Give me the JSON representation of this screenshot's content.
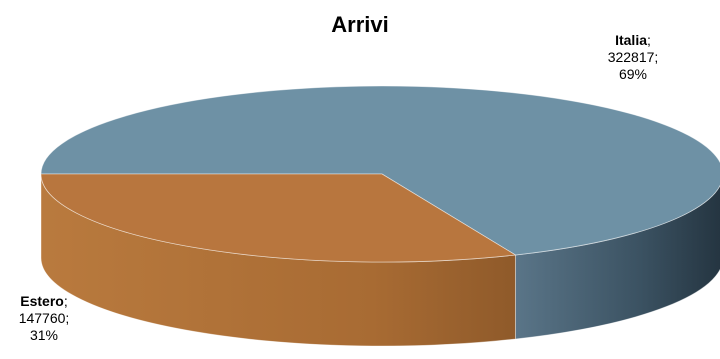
{
  "chart_data": {
    "type": "pie",
    "title": "Arrivi",
    "three_d": true,
    "categories": [
      "Italia",
      "Estero"
    ],
    "values": [
      322817,
      147760
    ],
    "percents": [
      "69%",
      "31%"
    ],
    "colors": [
      "#6e91a5",
      "#b8763e"
    ],
    "legend": "none",
    "labels": [
      {
        "category": "Italia",
        "value_text": "322817;",
        "percent_text": "69%"
      },
      {
        "category": "Estero",
        "value_text": "147760;",
        "percent_text": "31%"
      }
    ]
  }
}
